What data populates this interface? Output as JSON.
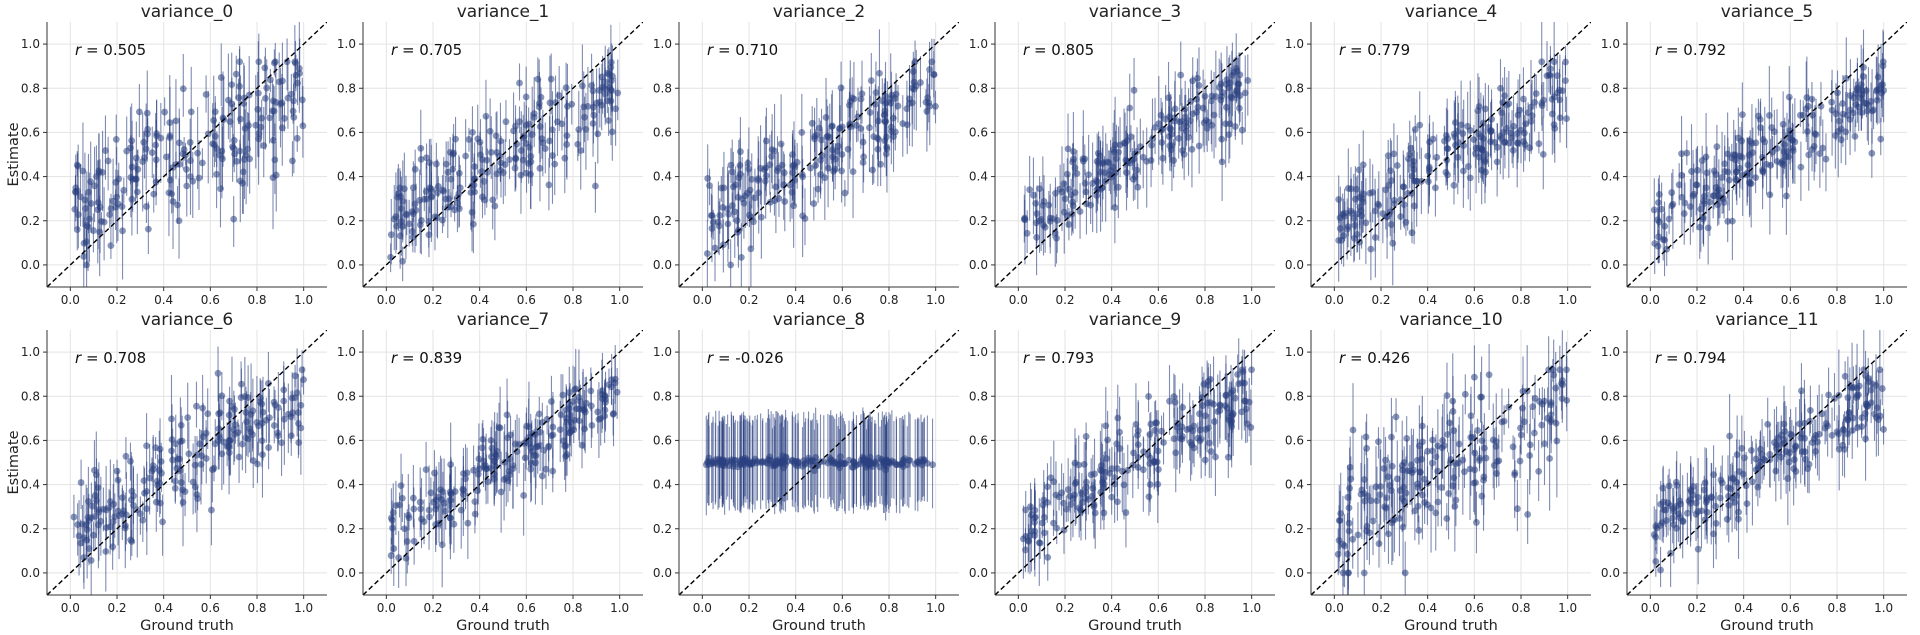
{
  "figure": {
    "xlabel": "Ground truth",
    "ylabel": "Estimate"
  },
  "colors": {
    "point": "#2a3f80",
    "errorbar": "#2a3f80",
    "diagonal": "#000000",
    "grid": "#e3e3e3",
    "axis": "#333333"
  },
  "chart_data": [
    {
      "type": "scatter",
      "title": "variance_0",
      "r_prefix": "r",
      "r_text": " = 0.505",
      "r": 0.505,
      "xlim": [
        -0.1,
        1.1
      ],
      "ylim": [
        -0.1,
        1.1
      ],
      "xticks": [
        "0.0",
        "0.2",
        "0.4",
        "0.6",
        "0.8",
        "1.0"
      ],
      "yticks": [
        "0.0",
        "0.2",
        "0.4",
        "0.6",
        "0.8",
        "1.0"
      ],
      "grid": true,
      "reference_line": "y = x",
      "error_bars": true,
      "points": "~200 (x in 0–1, estimates mostly 0.25–0.7)"
    },
    {
      "type": "scatter",
      "title": "variance_1",
      "r_prefix": "r",
      "r_text": " = 0.705",
      "r": 0.705,
      "xlim": [
        -0.1,
        1.1
      ],
      "ylim": [
        -0.1,
        1.1
      ],
      "xticks": [
        "0.0",
        "0.2",
        "0.4",
        "0.6",
        "0.8",
        "1.0"
      ],
      "yticks": [
        "0.0",
        "0.2",
        "0.4",
        "0.6",
        "0.8",
        "1.0"
      ],
      "grid": true,
      "reference_line": "y = x",
      "error_bars": true
    },
    {
      "type": "scatter",
      "title": "variance_2",
      "r_prefix": "r",
      "r_text": " = 0.710",
      "r": 0.71,
      "xlim": [
        -0.1,
        1.1
      ],
      "ylim": [
        -0.1,
        1.1
      ],
      "xticks": [
        "0.0",
        "0.2",
        "0.4",
        "0.6",
        "0.8",
        "1.0"
      ],
      "yticks": [
        "0.0",
        "0.2",
        "0.4",
        "0.6",
        "0.8",
        "1.0"
      ],
      "grid": true,
      "reference_line": "y = x",
      "error_bars": true
    },
    {
      "type": "scatter",
      "title": "variance_3",
      "r_prefix": "r",
      "r_text": " = 0.805",
      "r": 0.805,
      "xlim": [
        -0.1,
        1.1
      ],
      "ylim": [
        -0.1,
        1.1
      ],
      "xticks": [
        "0.0",
        "0.2",
        "0.4",
        "0.6",
        "0.8",
        "1.0"
      ],
      "yticks": [
        "0.0",
        "0.2",
        "0.4",
        "0.6",
        "0.8",
        "1.0"
      ],
      "grid": true,
      "reference_line": "y = x",
      "error_bars": true
    },
    {
      "type": "scatter",
      "title": "variance_4",
      "r_prefix": "r",
      "r_text": " = 0.779",
      "r": 0.779,
      "xlim": [
        -0.1,
        1.1
      ],
      "ylim": [
        -0.1,
        1.1
      ],
      "xticks": [
        "0.0",
        "0.2",
        "0.4",
        "0.6",
        "0.8",
        "1.0"
      ],
      "yticks": [
        "0.0",
        "0.2",
        "0.4",
        "0.6",
        "0.8",
        "1.0"
      ],
      "grid": true,
      "reference_line": "y = x",
      "error_bars": true
    },
    {
      "type": "scatter",
      "title": "variance_5",
      "r_prefix": "r",
      "r_text": " = 0.792",
      "r": 0.792,
      "xlim": [
        -0.1,
        1.1
      ],
      "ylim": [
        -0.1,
        1.1
      ],
      "xticks": [
        "0.0",
        "0.2",
        "0.4",
        "0.6",
        "0.8",
        "1.0"
      ],
      "yticks": [
        "0.0",
        "0.2",
        "0.4",
        "0.6",
        "0.8",
        "1.0"
      ],
      "grid": true,
      "reference_line": "y = x",
      "error_bars": true
    },
    {
      "type": "scatter",
      "title": "variance_6",
      "r_prefix": "r",
      "r_text": " = 0.708",
      "r": 0.708,
      "xlim": [
        -0.1,
        1.1
      ],
      "ylim": [
        -0.1,
        1.1
      ],
      "xticks": [
        "0.0",
        "0.2",
        "0.4",
        "0.6",
        "0.8",
        "1.0"
      ],
      "yticks": [
        "0.0",
        "0.2",
        "0.4",
        "0.6",
        "0.8",
        "1.0"
      ],
      "grid": true,
      "reference_line": "y = x",
      "error_bars": true
    },
    {
      "type": "scatter",
      "title": "variance_7",
      "r_prefix": "r",
      "r_text": " = 0.839",
      "r": 0.839,
      "xlim": [
        -0.1,
        1.1
      ],
      "ylim": [
        -0.1,
        1.1
      ],
      "xticks": [
        "0.0",
        "0.2",
        "0.4",
        "0.6",
        "0.8",
        "1.0"
      ],
      "yticks": [
        "0.0",
        "0.2",
        "0.4",
        "0.6",
        "0.8",
        "1.0"
      ],
      "grid": true,
      "reference_line": "y = x",
      "error_bars": true
    },
    {
      "type": "scatter",
      "title": "variance_8",
      "r_prefix": "r",
      "r_text": " = -0.026",
      "r": -0.026,
      "xlim": [
        -0.1,
        1.1
      ],
      "ylim": [
        -0.1,
        1.1
      ],
      "xticks": [
        "0.0",
        "0.2",
        "0.4",
        "0.6",
        "0.8",
        "1.0"
      ],
      "yticks": [
        "0.0",
        "0.2",
        "0.4",
        "0.6",
        "0.8",
        "1.0"
      ],
      "grid": true,
      "reference_line": "y = x",
      "error_bars": true,
      "points": "estimates flat near 0.5 with error bars ~0.3–0.72"
    },
    {
      "type": "scatter",
      "title": "variance_9",
      "r_prefix": "r",
      "r_text": " = 0.793",
      "r": 0.793,
      "xlim": [
        -0.1,
        1.1
      ],
      "ylim": [
        -0.1,
        1.1
      ],
      "xticks": [
        "0.0",
        "0.2",
        "0.4",
        "0.6",
        "0.8",
        "1.0"
      ],
      "yticks": [
        "0.0",
        "0.2",
        "0.4",
        "0.6",
        "0.8",
        "1.0"
      ],
      "grid": true,
      "reference_line": "y = x",
      "error_bars": true
    },
    {
      "type": "scatter",
      "title": "variance_10",
      "r_prefix": "r",
      "r_text": " = 0.426",
      "r": 0.426,
      "xlim": [
        -0.1,
        1.1
      ],
      "ylim": [
        -0.1,
        1.1
      ],
      "xticks": [
        "0.0",
        "0.2",
        "0.4",
        "0.6",
        "0.8",
        "1.0"
      ],
      "yticks": [
        "0.0",
        "0.2",
        "0.4",
        "0.6",
        "0.8",
        "1.0"
      ],
      "grid": true,
      "reference_line": "y = x",
      "error_bars": true
    },
    {
      "type": "scatter",
      "title": "variance_11",
      "r_prefix": "r",
      "r_text": " = 0.794",
      "r": 0.794,
      "xlim": [
        -0.1,
        1.1
      ],
      "ylim": [
        -0.1,
        1.1
      ],
      "xticks": [
        "0.0",
        "0.2",
        "0.4",
        "0.6",
        "0.8",
        "1.0"
      ],
      "yticks": [
        "0.0",
        "0.2",
        "0.4",
        "0.6",
        "0.8",
        "1.0"
      ],
      "grid": true,
      "reference_line": "y = x",
      "error_bars": true
    }
  ]
}
